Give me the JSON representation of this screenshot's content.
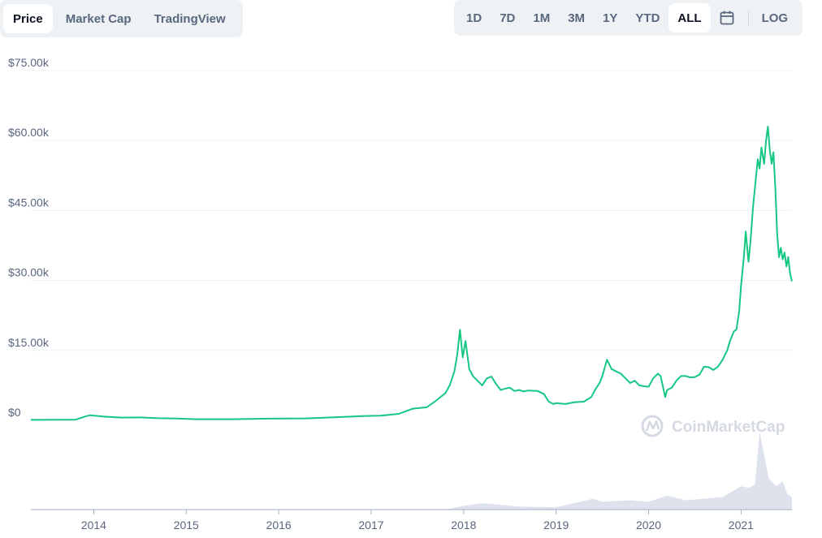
{
  "tabs": [
    {
      "label": "Price",
      "active": true
    },
    {
      "label": "Market Cap",
      "active": false
    },
    {
      "label": "TradingView",
      "active": false
    }
  ],
  "ranges": [
    {
      "label": "1D",
      "active": false
    },
    {
      "label": "7D",
      "active": false
    },
    {
      "label": "1M",
      "active": false
    },
    {
      "label": "3M",
      "active": false
    },
    {
      "label": "1Y",
      "active": false
    },
    {
      "label": "YTD",
      "active": false
    },
    {
      "label": "ALL",
      "active": true
    }
  ],
  "calendar_icon": "calendar-icon",
  "log_label": "LOG",
  "watermark": {
    "text": "CoinMarketCap",
    "icon": "coinmarketcap-logo-icon"
  },
  "colors": {
    "line": "#16c784",
    "grid": "#eff2f5",
    "volume": "#cfd6e4",
    "text": "#58667e"
  },
  "chart_data": {
    "type": "line",
    "title": "",
    "xlabel": "",
    "ylabel": "",
    "x_range": [
      2013.32,
      2021.55
    ],
    "ylim": [
      0,
      75000
    ],
    "y_ticks": [
      0,
      15000,
      30000,
      45000,
      60000,
      75000
    ],
    "y_tick_labels": [
      "$0",
      "$15.00k",
      "$30.00k",
      "$45.00k",
      "$60.00k",
      "$75.00k"
    ],
    "x_ticks": [
      2014,
      2015,
      2016,
      2017,
      2018,
      2019,
      2020,
      2021
    ],
    "x_tick_labels": [
      "2014",
      "2015",
      "2016",
      "2017",
      "2018",
      "2019",
      "2020",
      "2021"
    ],
    "grid": true,
    "legend": "none",
    "series": [
      {
        "x": [
          2013.32,
          2013.8,
          2013.92,
          2013.96,
          2014.1,
          2014.3,
          2014.5,
          2014.7,
          2014.9,
          2015.1,
          2015.5,
          2015.9,
          2016.3,
          2016.6,
          2016.9,
          2017.1,
          2017.3,
          2017.45,
          2017.6,
          2017.7,
          2017.8,
          2017.85,
          2017.9,
          2017.93,
          2017.96,
          2017.99,
          2018.02,
          2018.06,
          2018.1,
          2018.15,
          2018.2,
          2018.25,
          2018.3,
          2018.35,
          2018.4,
          2018.45,
          2018.5,
          2018.55,
          2018.6,
          2018.65,
          2018.7,
          2018.8,
          2018.87,
          2018.92,
          2018.97,
          2019.0,
          2019.1,
          2019.2,
          2019.3,
          2019.38,
          2019.42,
          2019.47,
          2019.5,
          2019.55,
          2019.6,
          2019.65,
          2019.7,
          2019.75,
          2019.8,
          2019.85,
          2019.9,
          2019.95,
          2020.0,
          2020.05,
          2020.1,
          2020.13,
          2020.18,
          2020.2,
          2020.25,
          2020.3,
          2020.35,
          2020.4,
          2020.45,
          2020.5,
          2020.55,
          2020.6,
          2020.65,
          2020.7,
          2020.75,
          2020.8,
          2020.85,
          2020.88,
          2020.92,
          2020.95,
          2020.98,
          2021.0,
          2021.03,
          2021.05,
          2021.08,
          2021.1,
          2021.13,
          2021.15,
          2021.18,
          2021.2,
          2021.22,
          2021.25,
          2021.27,
          2021.29,
          2021.31,
          2021.33,
          2021.35,
          2021.37,
          2021.39,
          2021.41,
          2021.43,
          2021.45,
          2021.47,
          2021.49,
          2021.51,
          2021.53,
          2021.55
        ],
        "y": [
          110,
          130,
          900,
          1100,
          820,
          600,
          620,
          450,
          380,
          250,
          240,
          360,
          420,
          650,
          900,
          1000,
          1400,
          2500,
          2800,
          4200,
          5800,
          7500,
          10500,
          14000,
          19400,
          13500,
          17000,
          11000,
          9500,
          8500,
          7500,
          9000,
          9400,
          7800,
          6500,
          6800,
          7000,
          6300,
          6500,
          6200,
          6400,
          6300,
          5600,
          4000,
          3500,
          3700,
          3500,
          3900,
          4000,
          5000,
          6500,
          8000,
          9500,
          13000,
          11000,
          10500,
          10000,
          9000,
          8000,
          8500,
          7500,
          7300,
          7200,
          9000,
          10000,
          9500,
          5000,
          6500,
          7000,
          8500,
          9500,
          9500,
          9200,
          9300,
          9800,
          11500,
          11400,
          10800,
          11500,
          13000,
          15000,
          17000,
          19000,
          19500,
          23500,
          29000,
          35000,
          40500,
          34000,
          38000,
          46000,
          50000,
          56000,
          54000,
          58500,
          55000,
          60000,
          63000,
          58000,
          55000,
          57500,
          50000,
          40000,
          35000,
          37000,
          34500,
          36000,
          33000,
          35000,
          31500,
          29800
        ]
      }
    ],
    "volume": {
      "x": [
        2013.32,
        2017.8,
        2018.0,
        2018.2,
        2018.6,
        2019.0,
        2019.4,
        2019.5,
        2019.8,
        2020.0,
        2020.2,
        2020.4,
        2020.8,
        2021.0,
        2021.08,
        2021.15,
        2021.2,
        2021.3,
        2021.38,
        2021.45,
        2021.5,
        2021.55
      ],
      "y": [
        0,
        0,
        5,
        8,
        4,
        3,
        14,
        10,
        12,
        10,
        18,
        12,
        16,
        30,
        28,
        32,
        100,
        40,
        30,
        36,
        20,
        16
      ]
    }
  }
}
